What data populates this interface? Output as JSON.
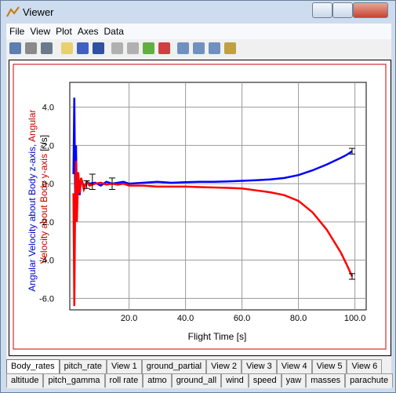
{
  "window": {
    "title": "Viewer"
  },
  "menu": [
    "File",
    "View",
    "Plot",
    "Axes",
    "Data"
  ],
  "chart_data": {
    "type": "line",
    "x_label": "Flight Time [s]",
    "y_label": [
      "Angular Velocity about Body z-axis,",
      "Angular",
      "Velocity about Body y-axis",
      "[°/s]"
    ],
    "x": [
      0.3,
      0.6,
      0.9,
      1.2,
      1.5,
      2,
      2.5,
      3,
      4,
      5,
      6,
      8,
      10,
      12,
      14,
      16,
      18,
      20,
      25,
      30,
      35,
      40,
      45,
      50,
      55,
      60,
      65,
      70,
      75,
      80,
      85,
      90,
      95,
      97,
      99
    ],
    "series": [
      {
        "color": "#0000ff",
        "values": [
          0.5,
          4.5,
          -0.5,
          2.0,
          -1.0,
          0.5,
          -0.6,
          0.3,
          -0.2,
          0.1,
          0.0,
          0.05,
          -0.1,
          0.1,
          0.0,
          0.05,
          0.1,
          0.0,
          0.05,
          0.1,
          0.05,
          0.08,
          0.1,
          0.1,
          0.12,
          0.15,
          0.18,
          0.22,
          0.3,
          0.45,
          0.7,
          1.0,
          1.35,
          1.5,
          1.7
        ]
      },
      {
        "color": "#ff0000",
        "values": [
          -0.5,
          -6.4,
          -1.0,
          1.2,
          -2.0,
          0.6,
          -0.5,
          0.3,
          -0.3,
          0.1,
          -0.1,
          0.0,
          0.05,
          -0.05,
          0.0,
          -0.05,
          0.0,
          -0.1,
          -0.1,
          -0.15,
          -0.15,
          -0.15,
          -0.18,
          -0.2,
          -0.22,
          -0.25,
          -0.35,
          -0.45,
          -0.6,
          -0.9,
          -1.5,
          -2.4,
          -3.6,
          -4.2,
          -4.85
        ]
      }
    ],
    "error_bars": {
      "x": [
        5,
        7,
        14,
        99,
        99
      ],
      "y": [
        -0.05,
        0.1,
        0.0,
        1.7,
        -4.85
      ],
      "err": [
        0.2,
        0.4,
        0.3,
        0.15,
        0.15
      ]
    },
    "xlim": [
      -1,
      104
    ],
    "ylim": [
      -6.6,
      5.3
    ],
    "xticks": [
      {
        "value": 20,
        "label": "20.0"
      },
      {
        "value": 40,
        "label": "40.0"
      },
      {
        "value": 60,
        "label": "60.0"
      },
      {
        "value": 80,
        "label": "80.0"
      },
      {
        "value": 100,
        "label": "100.0"
      }
    ],
    "yticks": [
      {
        "value": -6,
        "label": "-6.0"
      },
      {
        "value": -4,
        "label": "-4.0"
      },
      {
        "value": -2,
        "label": "-2.0"
      },
      {
        "value": 0,
        "label": "0.0"
      },
      {
        "value": 2,
        "label": "2.0"
      },
      {
        "value": 4,
        "label": "4.0"
      }
    ],
    "grid": true
  },
  "tabs": {
    "row1": [
      "Body_rates",
      "pitch_rate",
      "View 1",
      "ground_partial",
      "View 2",
      "View 3",
      "View 4",
      "View 5",
      "View 6"
    ],
    "row2": [
      "altitude",
      "pitch_gamma",
      "roll rate",
      "atmo",
      "ground_all",
      "wind",
      "speed",
      "yaw",
      "masses",
      "parachute"
    ],
    "selected": "Body_rates"
  }
}
